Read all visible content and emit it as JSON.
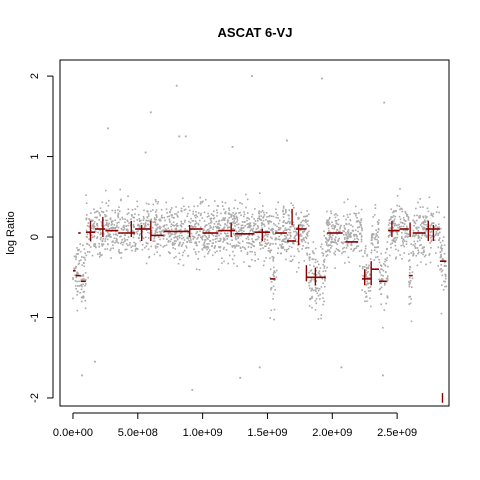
{
  "chart_data": {
    "type": "scatter",
    "title": "ASCAT  6-VJ",
    "xlabel": "",
    "ylabel": "log Ratio",
    "xlim": [
      -100000000.0,
      2900000000.0
    ],
    "ylim": [
      -2.1,
      2.2
    ],
    "x_ticks": [
      {
        "value": 0,
        "label": "0.0e+00"
      },
      {
        "value": 500000000,
        "label": "5.0e+08"
      },
      {
        "value": 1000000000,
        "label": "1.0e+09"
      },
      {
        "value": 1500000000,
        "label": "1.5e+09"
      },
      {
        "value": 2000000000,
        "label": "2.0e+09"
      },
      {
        "value": 2500000000,
        "label": "2.5e+09"
      }
    ],
    "y_ticks": [
      {
        "value": -2,
        "label": "-2"
      },
      {
        "value": -1,
        "label": "-1"
      },
      {
        "value": 0,
        "label": "0"
      },
      {
        "value": 1,
        "label": "1"
      },
      {
        "value": 2,
        "label": "2"
      }
    ],
    "grid": false,
    "colors": {
      "points": "#aaaaaa",
      "segments": "#8b0000"
    },
    "point_clusters": [
      {
        "x_start": 0,
        "x_end": 100000000,
        "center": -0.45,
        "spread": 0.35
      },
      {
        "x_start": 100000000,
        "x_end": 1550000000,
        "center": 0.07,
        "spread": 0.3
      },
      {
        "x_start": 1520000000,
        "x_end": 1560000000,
        "center": -0.5,
        "spread": 0.4
      },
      {
        "x_start": 1560000000,
        "x_end": 1820000000,
        "center": 0.05,
        "spread": 0.3
      },
      {
        "x_start": 1820000000,
        "x_end": 1950000000,
        "center": -0.5,
        "spread": 0.4
      },
      {
        "x_start": 1950000000,
        "x_end": 2230000000,
        "center": 0.02,
        "spread": 0.3
      },
      {
        "x_start": 2230000000,
        "x_end": 2300000000,
        "center": -0.52,
        "spread": 0.35
      },
      {
        "x_start": 2300000000,
        "x_end": 2360000000,
        "center": 0.0,
        "spread": 0.3
      },
      {
        "x_start": 2360000000,
        "x_end": 2430000000,
        "center": -0.55,
        "spread": 0.35
      },
      {
        "x_start": 2430000000,
        "x_end": 2590000000,
        "center": 0.08,
        "spread": 0.3
      },
      {
        "x_start": 2590000000,
        "x_end": 2620000000,
        "center": -0.5,
        "spread": 0.3
      },
      {
        "x_start": 2620000000,
        "x_end": 2830000000,
        "center": 0.08,
        "spread": 0.3
      },
      {
        "x_start": 2830000000,
        "x_end": 2880000000,
        "center": -0.3,
        "spread": 0.35
      }
    ],
    "outliers": [
      {
        "x": 70000000,
        "y": -1.72
      },
      {
        "x": 170000000,
        "y": -1.55
      },
      {
        "x": 270000000,
        "y": 1.35
      },
      {
        "x": 560000000,
        "y": 1.05
      },
      {
        "x": 600000000,
        "y": 1.55
      },
      {
        "x": 800000000,
        "y": 1.88
      },
      {
        "x": 820000000,
        "y": 1.25
      },
      {
        "x": 870000000,
        "y": 1.25
      },
      {
        "x": 920000000,
        "y": -1.9
      },
      {
        "x": 1380000000,
        "y": 2.0
      },
      {
        "x": 1230000000,
        "y": 1.12
      },
      {
        "x": 1290000000,
        "y": -1.75
      },
      {
        "x": 1440000000,
        "y": -1.62
      },
      {
        "x": 1650000000,
        "y": 1.2
      },
      {
        "x": 1920000000,
        "y": 1.97
      },
      {
        "x": 2400000000,
        "y": 1.67
      },
      {
        "x": 2390000000,
        "y": -1.72
      },
      {
        "x": 2070000000,
        "y": -1.62
      }
    ],
    "segments": [
      {
        "x_start": 0,
        "x_end": 20000000,
        "y": -0.42
      },
      {
        "x_start": 20000000,
        "x_end": 60000000,
        "y": -0.48
      },
      {
        "x_start": 60000000,
        "x_end": 100000000,
        "y": -0.55
      },
      {
        "x_start": 40000000,
        "x_end": 60000000,
        "y": 0.05
      },
      {
        "x_start": 100000000,
        "x_end": 170000000,
        "y": 0.06
      },
      {
        "x_start": 170000000,
        "x_end": 250000000,
        "y": 0.1
      },
      {
        "x_start": 250000000,
        "x_end": 350000000,
        "y": 0.08
      },
      {
        "x_start": 350000000,
        "x_end": 480000000,
        "y": 0.05
      },
      {
        "x_start": 480000000,
        "x_end": 600000000,
        "y": 0.1
      },
      {
        "x_start": 600000000,
        "x_end": 700000000,
        "y": 0.02
      },
      {
        "x_start": 700000000,
        "x_end": 900000000,
        "y": 0.07
      },
      {
        "x_start": 900000000,
        "x_end": 1000000000,
        "y": 0.1
      },
      {
        "x_start": 1000000000,
        "x_end": 1120000000,
        "y": 0.05
      },
      {
        "x_start": 1120000000,
        "x_end": 1250000000,
        "y": 0.08
      },
      {
        "x_start": 1250000000,
        "x_end": 1400000000,
        "y": 0.04
      },
      {
        "x_start": 1400000000,
        "x_end": 1520000000,
        "y": 0.06
      },
      {
        "x_start": 1520000000,
        "x_end": 1560000000,
        "y": -0.52
      },
      {
        "x_start": 1560000000,
        "x_end": 1650000000,
        "y": 0.05
      },
      {
        "x_start": 1650000000,
        "x_end": 1720000000,
        "y": -0.05
      },
      {
        "x_start": 1720000000,
        "x_end": 1800000000,
        "y": 0.1
      },
      {
        "x_start": 1800000000,
        "x_end": 1950000000,
        "y": -0.5
      },
      {
        "x_start": 1960000000,
        "x_end": 2080000000,
        "y": 0.05
      },
      {
        "x_start": 2100000000,
        "x_end": 2200000000,
        "y": -0.06
      },
      {
        "x_start": 2230000000,
        "x_end": 2300000000,
        "y": -0.52
      },
      {
        "x_start": 2300000000,
        "x_end": 2360000000,
        "y": -0.4
      },
      {
        "x_start": 2360000000,
        "x_end": 2420000000,
        "y": -0.55
      },
      {
        "x_start": 2430000000,
        "x_end": 2520000000,
        "y": 0.08
      },
      {
        "x_start": 2520000000,
        "x_end": 2590000000,
        "y": 0.1
      },
      {
        "x_start": 2590000000,
        "x_end": 2620000000,
        "y": -0.48
      },
      {
        "x_start": 2620000000,
        "x_end": 2720000000,
        "y": 0.05
      },
      {
        "x_start": 2720000000,
        "x_end": 2830000000,
        "y": 0.1
      },
      {
        "x_start": 2830000000,
        "x_end": 2880000000,
        "y": -0.3
      }
    ],
    "spikes": [
      {
        "x": 135000000,
        "y1": -0.05,
        "y2": 0.2
      },
      {
        "x": 230000000,
        "y1": 0.0,
        "y2": 0.25
      },
      {
        "x": 450000000,
        "y1": 0.0,
        "y2": 0.2
      },
      {
        "x": 530000000,
        "y1": -0.05,
        "y2": 0.15
      },
      {
        "x": 600000000,
        "y1": -0.05,
        "y2": 0.2
      },
      {
        "x": 900000000,
        "y1": 0.0,
        "y2": 0.15
      },
      {
        "x": 1220000000,
        "y1": 0.0,
        "y2": 0.18
      },
      {
        "x": 1460000000,
        "y1": -0.05,
        "y2": 0.1
      },
      {
        "x": 1690000000,
        "y1": 0.15,
        "y2": 0.35
      },
      {
        "x": 1740000000,
        "y1": -0.1,
        "y2": 0.15
      },
      {
        "x": 1800000000,
        "y1": -0.55,
        "y2": -0.35
      },
      {
        "x": 1870000000,
        "y1": -0.6,
        "y2": -0.38
      },
      {
        "x": 2250000000,
        "y1": -0.6,
        "y2": -0.4
      },
      {
        "x": 2300000000,
        "y1": -0.6,
        "y2": -0.3
      },
      {
        "x": 2460000000,
        "y1": 0.0,
        "y2": 0.2
      },
      {
        "x": 2600000000,
        "y1": 0.0,
        "y2": 0.18
      },
      {
        "x": 2740000000,
        "y1": -0.05,
        "y2": 0.2
      },
      {
        "x": 2780000000,
        "y1": -0.05,
        "y2": 0.15
      },
      {
        "x": 2850000000,
        "y1": -2.06,
        "y2": -1.94
      }
    ]
  }
}
